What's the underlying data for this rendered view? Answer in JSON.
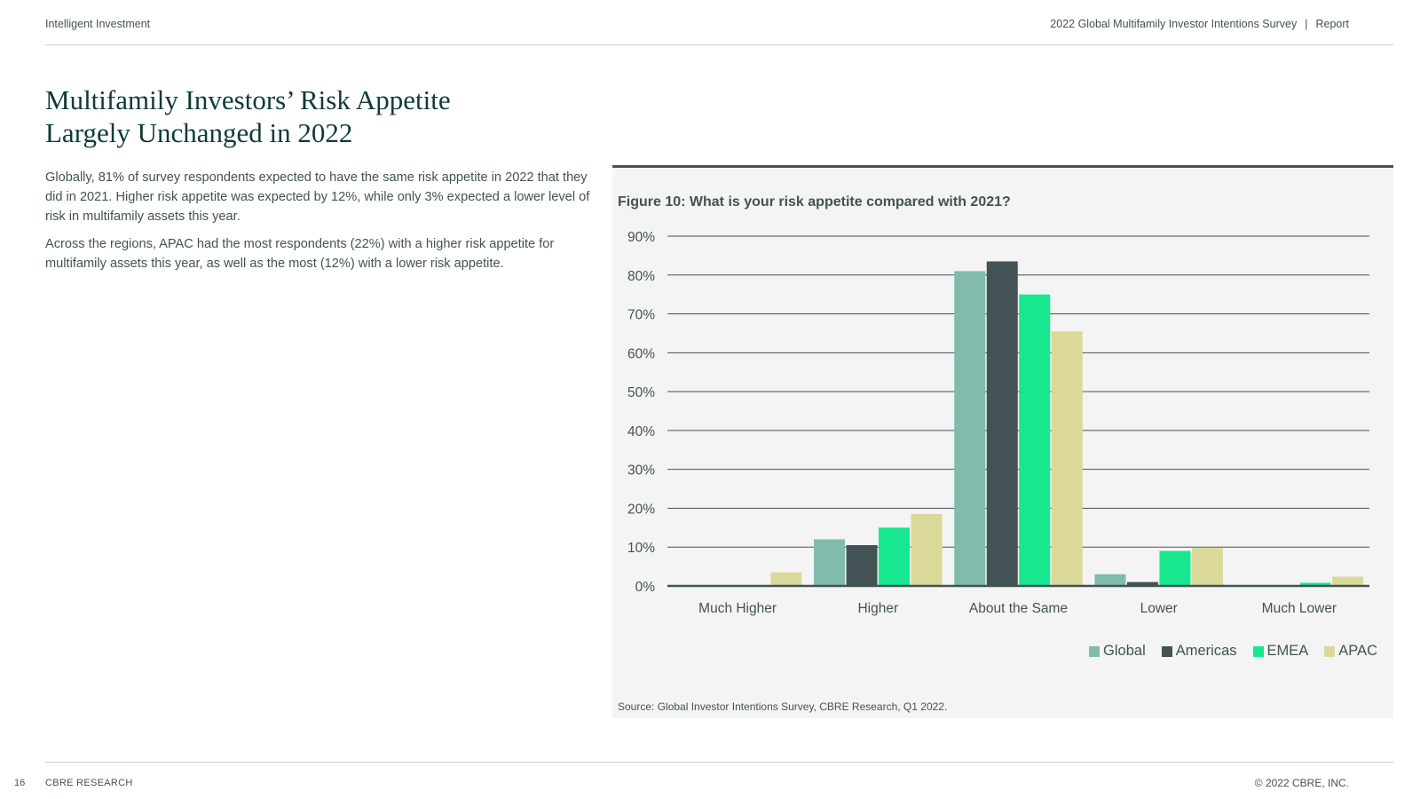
{
  "header": {
    "left": "Intelligent Investment",
    "right_title": "2022 Global Multifamily Investor Intentions Survey",
    "right_separator": "|",
    "right_section": "Report"
  },
  "main": {
    "title_line1": "Multifamily Investors’ Risk Appetite",
    "title_line2": "Largely Unchanged in 2022",
    "paragraph1": "Globally, 81% of survey respondents expected to have the same risk appetite in 2022 that they did in 2021. Higher risk appetite was expected by 12%, while only 3% expected a lower level of risk in multifamily assets this year.",
    "paragraph2": "Across the regions, APAC had the most respondents (22%) with a higher risk appetite for multifamily assets this year, as well as the most (12%) with a lower risk appetite."
  },
  "figure": {
    "title": "Figure 10: What is your risk appetite compared with 2021?",
    "source": "Source: Global Investor Intentions Survey, CBRE Research, Q1 2022."
  },
  "chart_data": {
    "type": "bar",
    "title": "Figure 10: What is your risk appetite compared with 2021?",
    "xlabel": "",
    "ylabel": "",
    "ylim": [
      0,
      90
    ],
    "yticks": [
      0,
      10,
      20,
      30,
      40,
      50,
      60,
      70,
      80,
      90
    ],
    "ytick_labels": [
      "0%",
      "10%",
      "20%",
      "30%",
      "40%",
      "50%",
      "60%",
      "70%",
      "80%",
      "90%"
    ],
    "grid": true,
    "legend_position": "bottom-right",
    "categories": [
      "Much Higher",
      "Higher",
      "About the Same",
      "Lower",
      "Much Lower"
    ],
    "series": [
      {
        "name": "Global",
        "color": "#80bbad",
        "values": [
          0,
          12,
          81,
          3,
          0
        ]
      },
      {
        "name": "Americas",
        "color": "#435254",
        "values": [
          0,
          10.5,
          83.5,
          1,
          0
        ]
      },
      {
        "name": "EMEA",
        "color": "#17e88f",
        "values": [
          0,
          15,
          75,
          9,
          0.8
        ]
      },
      {
        "name": "APAC",
        "color": "#dbd99a",
        "values": [
          3.5,
          18.5,
          65.5,
          9.8,
          2.4
        ]
      }
    ]
  },
  "footer": {
    "page_number": "16",
    "left": "CBRE RESEARCH",
    "right": "© 2022 CBRE, INC."
  }
}
